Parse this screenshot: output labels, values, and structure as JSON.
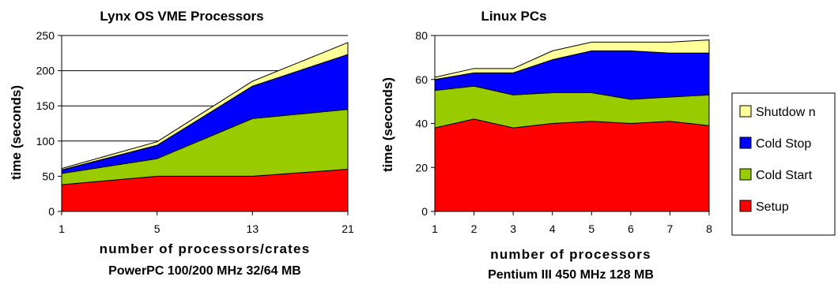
{
  "chart_data": [
    {
      "type": "area",
      "stacked": true,
      "title": "Lynx OS VME Processors",
      "xlabel": "number of processors/crates",
      "xlabel_sub": "PowerPC 100/200 MHz 32/64 MB",
      "ylabel": "time (seconds)",
      "categories": [
        "1",
        "5",
        "13",
        "21"
      ],
      "ylim": [
        0,
        250
      ],
      "yticks": [
        0,
        50,
        100,
        150,
        200,
        250
      ],
      "grid": true,
      "series": [
        {
          "name": "Setup",
          "color": "#ff0000",
          "values": [
            38,
            50,
            50,
            60
          ]
        },
        {
          "name": "Cold Start",
          "color": "#99cc00",
          "values": [
            16,
            25,
            82,
            85
          ]
        },
        {
          "name": "Cold Stop",
          "color": "#0000ff",
          "values": [
            5,
            19,
            46,
            78
          ]
        },
        {
          "name": "Shutdown",
          "color": "#ffff99",
          "values": [
            2,
            5,
            7,
            17
          ]
        }
      ]
    },
    {
      "type": "area",
      "stacked": true,
      "title": "Linux PCs",
      "xlabel": "number of processors",
      "xlabel_sub": "Pentium III 450 MHz 128 MB",
      "ylabel": "time (seconds)",
      "categories": [
        "1",
        "2",
        "3",
        "4",
        "5",
        "6",
        "7",
        "8"
      ],
      "ylim": [
        0,
        80
      ],
      "yticks": [
        0,
        20,
        40,
        60,
        80
      ],
      "grid": true,
      "series": [
        {
          "name": "Setup",
          "color": "#ff0000",
          "values": [
            38,
            42,
            38,
            40,
            41,
            40,
            41,
            39
          ]
        },
        {
          "name": "Cold Start",
          "color": "#99cc00",
          "values": [
            17,
            15,
            15,
            14,
            13,
            11,
            11,
            14
          ]
        },
        {
          "name": "Cold Stop",
          "color": "#0000ff",
          "values": [
            5,
            6,
            10,
            15,
            19,
            22,
            20,
            19
          ]
        },
        {
          "name": "Shutdown",
          "color": "#ffff99",
          "values": [
            1,
            2,
            2,
            4,
            4,
            4,
            5,
            6
          ]
        }
      ]
    }
  ],
  "legend": {
    "placement": "right",
    "items": [
      {
        "label": "Shutdow n",
        "color": "#ffff99"
      },
      {
        "label": "Cold Stop",
        "color": "#0000ff"
      },
      {
        "label": "Cold Start",
        "color": "#99cc00"
      },
      {
        "label": "Setup",
        "color": "#ff0000"
      }
    ]
  }
}
